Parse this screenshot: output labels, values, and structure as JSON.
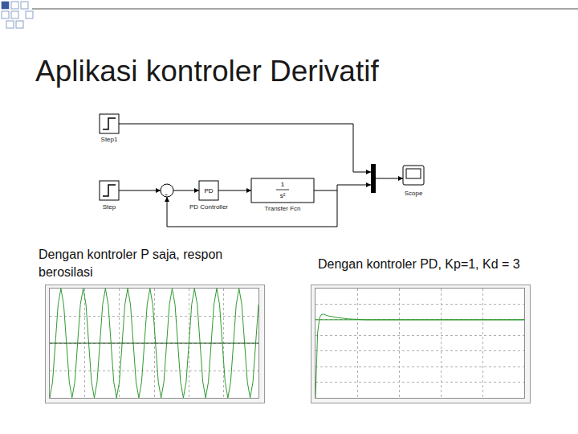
{
  "title": "Aplikasi kontroler Derivatif",
  "diagram": {
    "step1": {
      "label": "Step1"
    },
    "step": {
      "label": "Step"
    },
    "sum": {
      "sign": "-"
    },
    "controller": {
      "text": "PD",
      "label": "PD Controller"
    },
    "plant": {
      "numerator": "1",
      "denominator": "s²",
      "label": "Transfer Fcn"
    },
    "scope": {
      "label": "Scope"
    }
  },
  "chart_data": [
    {
      "type": "line",
      "title": "Dengan kontroler P saja, respon berosilasi",
      "xlim": [
        0,
        60
      ],
      "xticks": [
        0,
        10,
        20,
        30,
        40,
        50,
        60
      ],
      "ylim": [
        0,
        2
      ],
      "yticks": [
        0,
        0.5,
        1,
        1.5,
        2
      ],
      "grid": true,
      "tick_labels": false,
      "series": [
        {
          "color": "#2f9a2f",
          "x": [
            0,
            0.8,
            1.6,
            2.4,
            3.2,
            4,
            4.8,
            5.6,
            6.4,
            7.2,
            8,
            8.8,
            9.6,
            10.4,
            11.2,
            12,
            12.8,
            13.6,
            14.4,
            15.2,
            16,
            16.8,
            17.6,
            18.4,
            19.2,
            20,
            20.8,
            21.6,
            22.4,
            23.2,
            24,
            24.8,
            25.6,
            26.4,
            27.2,
            28,
            28.8,
            29.6,
            30.4,
            31.2,
            32,
            32.8,
            33.6,
            34.4,
            35.2,
            36,
            36.8,
            37.6,
            38.4,
            39.2,
            40,
            40.8,
            41.6,
            42.4,
            43.2,
            44,
            44.8,
            45.6,
            46.4,
            47.2,
            48,
            48.8,
            49.6,
            50.4,
            51.2,
            52,
            52.8,
            53.6,
            54.4,
            55.2,
            56,
            56.8,
            57.6,
            58.4,
            59.2,
            60
          ],
          "values": [
            0,
            0.29,
            1,
            1.71,
            2,
            1.71,
            1,
            0.29,
            0,
            0.29,
            1,
            1.71,
            2,
            1.71,
            1,
            0.29,
            0,
            0.29,
            1,
            1.71,
            2,
            1.71,
            1,
            0.29,
            0,
            0.29,
            1,
            1.71,
            2,
            1.71,
            1,
            0.29,
            0,
            0.29,
            1,
            1.71,
            2,
            1.71,
            1,
            0.29,
            0,
            0.29,
            1,
            1.71,
            2,
            1.71,
            1,
            0.29,
            0,
            0.29,
            1,
            1.71,
            2,
            1.71,
            1,
            0.29,
            0,
            0.29,
            1,
            1.71,
            2,
            1.71,
            1,
            0.29,
            0,
            0.29,
            1,
            1.71,
            2,
            1.71,
            1,
            0.29,
            0,
            0.29,
            1,
            1.71
          ]
        },
        {
          "color": "#1d4f1d",
          "x": [
            0,
            60
          ],
          "values": [
            1,
            1
          ]
        }
      ]
    },
    {
      "type": "line",
      "title": "Dengan kontroler PD, Kp=1, Kd = 3",
      "xlim": [
        0,
        50
      ],
      "xticks": [
        0,
        10,
        20,
        30,
        40,
        50
      ],
      "ylim": [
        0,
        1.4
      ],
      "yticks": [
        0,
        0.2,
        0.4,
        0.6,
        0.8,
        1,
        1.2,
        1.4
      ],
      "grid": true,
      "tick_labels": false,
      "series": [
        {
          "color": "#2f9a2f",
          "x": [
            0,
            50
          ],
          "values": [
            1,
            1
          ]
        },
        {
          "color": "#2f9a2f",
          "x": [
            0,
            0.25,
            0.5,
            1,
            1.5,
            2,
            3,
            5,
            8,
            12,
            20,
            50
          ],
          "values": [
            0,
            0.55,
            0.83,
            1.03,
            1.07,
            1.07,
            1.05,
            1.03,
            1.01,
            1,
            1,
            1
          ]
        }
      ]
    }
  ]
}
